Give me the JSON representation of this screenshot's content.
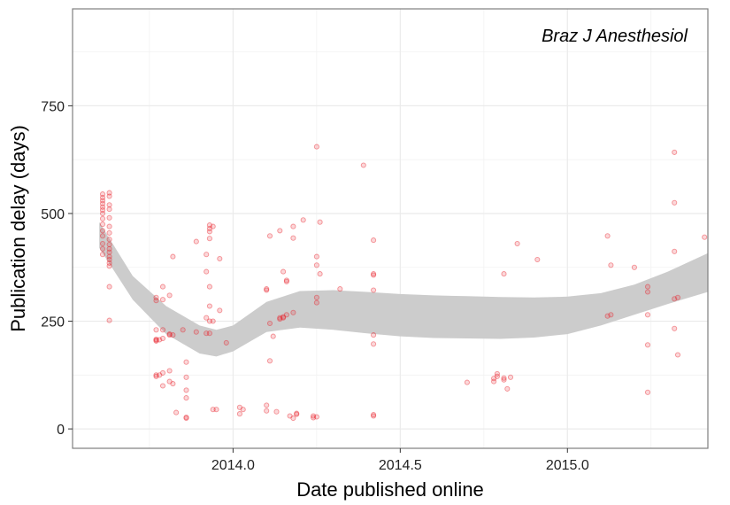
{
  "chart_data": {
    "type": "scatter",
    "title": "",
    "panel_label": "Braz J Anesthesiol",
    "xlabel": "Date published online",
    "ylabel": "Publication delay (days)",
    "x_ticks": [
      2014.0,
      2014.5,
      2015.0
    ],
    "x_tick_labels": [
      "2014.0",
      "2014.5",
      "2015.0"
    ],
    "y_ticks": [
      0,
      250,
      500,
      750
    ],
    "y_tick_labels": [
      "0",
      "250",
      "500",
      "750"
    ],
    "xlim": [
      2013.52,
      2015.42
    ],
    "ylim": [
      -45,
      975
    ],
    "grid": true,
    "point_color": "#e8212b",
    "band_color": "#cccccc",
    "smooth_band": {
      "x": [
        2013.6,
        2013.7,
        2013.8,
        2013.9,
        2013.95,
        2014.0,
        2014.1,
        2014.2,
        2014.3,
        2014.4,
        2014.5,
        2014.6,
        2014.7,
        2014.8,
        2014.9,
        2015.0,
        2015.1,
        2015.2,
        2015.3,
        2015.42
      ],
      "upper": [
        480,
        355,
        285,
        240,
        230,
        240,
        295,
        320,
        322,
        318,
        313,
        310,
        308,
        306,
        305,
        307,
        315,
        335,
        365,
        408
      ],
      "lower": [
        420,
        300,
        220,
        175,
        168,
        180,
        225,
        235,
        230,
        222,
        215,
        211,
        210,
        209,
        212,
        220,
        240,
        265,
        290,
        318
      ]
    },
    "points": [
      {
        "x": 2013.61,
        "y": 545
      },
      {
        "x": 2013.61,
        "y": 537
      },
      {
        "x": 2013.61,
        "y": 530
      },
      {
        "x": 2013.61,
        "y": 523
      },
      {
        "x": 2013.61,
        "y": 515
      },
      {
        "x": 2013.61,
        "y": 508
      },
      {
        "x": 2013.61,
        "y": 500
      },
      {
        "x": 2013.61,
        "y": 488
      },
      {
        "x": 2013.61,
        "y": 475
      },
      {
        "x": 2013.61,
        "y": 460
      },
      {
        "x": 2013.61,
        "y": 448
      },
      {
        "x": 2013.61,
        "y": 430
      },
      {
        "x": 2013.61,
        "y": 418
      },
      {
        "x": 2013.61,
        "y": 405
      },
      {
        "x": 2013.63,
        "y": 548
      },
      {
        "x": 2013.63,
        "y": 540
      },
      {
        "x": 2013.63,
        "y": 520
      },
      {
        "x": 2013.63,
        "y": 510
      },
      {
        "x": 2013.63,
        "y": 490
      },
      {
        "x": 2013.63,
        "y": 470
      },
      {
        "x": 2013.63,
        "y": 455
      },
      {
        "x": 2013.63,
        "y": 440
      },
      {
        "x": 2013.63,
        "y": 428
      },
      {
        "x": 2013.63,
        "y": 418
      },
      {
        "x": 2013.63,
        "y": 410
      },
      {
        "x": 2013.63,
        "y": 400
      },
      {
        "x": 2013.63,
        "y": 393
      },
      {
        "x": 2013.63,
        "y": 385
      },
      {
        "x": 2013.63,
        "y": 378
      },
      {
        "x": 2013.63,
        "y": 330
      },
      {
        "x": 2013.63,
        "y": 252
      },
      {
        "x": 2013.77,
        "y": 305
      },
      {
        "x": 2013.77,
        "y": 298
      },
      {
        "x": 2013.77,
        "y": 230
      },
      {
        "x": 2013.77,
        "y": 208
      },
      {
        "x": 2013.77,
        "y": 206
      },
      {
        "x": 2013.77,
        "y": 204
      },
      {
        "x": 2013.77,
        "y": 125
      },
      {
        "x": 2013.77,
        "y": 122
      },
      {
        "x": 2013.78,
        "y": 207
      },
      {
        "x": 2013.78,
        "y": 125
      },
      {
        "x": 2013.79,
        "y": 330
      },
      {
        "x": 2013.79,
        "y": 300
      },
      {
        "x": 2013.79,
        "y": 230
      },
      {
        "x": 2013.79,
        "y": 210
      },
      {
        "x": 2013.79,
        "y": 130
      },
      {
        "x": 2013.79,
        "y": 100
      },
      {
        "x": 2013.81,
        "y": 310
      },
      {
        "x": 2013.81,
        "y": 220
      },
      {
        "x": 2013.81,
        "y": 218
      },
      {
        "x": 2013.81,
        "y": 135
      },
      {
        "x": 2013.81,
        "y": 110
      },
      {
        "x": 2013.82,
        "y": 400
      },
      {
        "x": 2013.82,
        "y": 218
      },
      {
        "x": 2013.82,
        "y": 105
      },
      {
        "x": 2013.83,
        "y": 38
      },
      {
        "x": 2013.85,
        "y": 230
      },
      {
        "x": 2013.86,
        "y": 155
      },
      {
        "x": 2013.86,
        "y": 120
      },
      {
        "x": 2013.86,
        "y": 90
      },
      {
        "x": 2013.86,
        "y": 72
      },
      {
        "x": 2013.86,
        "y": 27
      },
      {
        "x": 2013.86,
        "y": 25
      },
      {
        "x": 2013.89,
        "y": 225
      },
      {
        "x": 2013.89,
        "y": 435
      },
      {
        "x": 2013.92,
        "y": 405
      },
      {
        "x": 2013.92,
        "y": 365
      },
      {
        "x": 2013.92,
        "y": 258
      },
      {
        "x": 2013.92,
        "y": 222
      },
      {
        "x": 2013.93,
        "y": 473
      },
      {
        "x": 2013.93,
        "y": 465
      },
      {
        "x": 2013.93,
        "y": 458
      },
      {
        "x": 2013.93,
        "y": 442
      },
      {
        "x": 2013.93,
        "y": 330
      },
      {
        "x": 2013.93,
        "y": 285
      },
      {
        "x": 2013.93,
        "y": 250
      },
      {
        "x": 2013.93,
        "y": 222
      },
      {
        "x": 2013.94,
        "y": 470
      },
      {
        "x": 2013.94,
        "y": 250
      },
      {
        "x": 2013.94,
        "y": 45
      },
      {
        "x": 2013.95,
        "y": 45
      },
      {
        "x": 2013.96,
        "y": 395
      },
      {
        "x": 2013.96,
        "y": 275
      },
      {
        "x": 2013.98,
        "y": 200
      },
      {
        "x": 2014.02,
        "y": 50
      },
      {
        "x": 2014.02,
        "y": 35
      },
      {
        "x": 2014.03,
        "y": 45
      },
      {
        "x": 2014.1,
        "y": 325
      },
      {
        "x": 2014.1,
        "y": 322
      },
      {
        "x": 2014.1,
        "y": 55
      },
      {
        "x": 2014.1,
        "y": 42
      },
      {
        "x": 2014.11,
        "y": 448
      },
      {
        "x": 2014.11,
        "y": 245
      },
      {
        "x": 2014.11,
        "y": 158
      },
      {
        "x": 2014.12,
        "y": 215
      },
      {
        "x": 2014.13,
        "y": 40
      },
      {
        "x": 2014.14,
        "y": 258
      },
      {
        "x": 2014.14,
        "y": 255
      },
      {
        "x": 2014.14,
        "y": 460
      },
      {
        "x": 2014.15,
        "y": 260
      },
      {
        "x": 2014.15,
        "y": 258
      },
      {
        "x": 2014.15,
        "y": 365
      },
      {
        "x": 2014.16,
        "y": 345
      },
      {
        "x": 2014.16,
        "y": 342
      },
      {
        "x": 2014.16,
        "y": 265
      },
      {
        "x": 2014.17,
        "y": 30
      },
      {
        "x": 2014.18,
        "y": 470
      },
      {
        "x": 2014.18,
        "y": 443
      },
      {
        "x": 2014.18,
        "y": 270
      },
      {
        "x": 2014.18,
        "y": 25
      },
      {
        "x": 2014.19,
        "y": 36
      },
      {
        "x": 2014.19,
        "y": 34
      },
      {
        "x": 2014.21,
        "y": 485
      },
      {
        "x": 2014.24,
        "y": 26
      },
      {
        "x": 2014.24,
        "y": 30
      },
      {
        "x": 2014.25,
        "y": 655
      },
      {
        "x": 2014.25,
        "y": 400
      },
      {
        "x": 2014.25,
        "y": 380
      },
      {
        "x": 2014.25,
        "y": 305
      },
      {
        "x": 2014.25,
        "y": 293
      },
      {
        "x": 2014.25,
        "y": 28
      },
      {
        "x": 2014.26,
        "y": 480
      },
      {
        "x": 2014.26,
        "y": 360
      },
      {
        "x": 2014.32,
        "y": 325
      },
      {
        "x": 2014.39,
        "y": 612
      },
      {
        "x": 2014.42,
        "y": 438
      },
      {
        "x": 2014.42,
        "y": 360
      },
      {
        "x": 2014.42,
        "y": 357
      },
      {
        "x": 2014.42,
        "y": 322
      },
      {
        "x": 2014.42,
        "y": 218
      },
      {
        "x": 2014.42,
        "y": 197
      },
      {
        "x": 2014.42,
        "y": 33
      },
      {
        "x": 2014.42,
        "y": 30
      },
      {
        "x": 2014.7,
        "y": 108
      },
      {
        "x": 2014.78,
        "y": 117
      },
      {
        "x": 2014.78,
        "y": 110
      },
      {
        "x": 2014.79,
        "y": 122
      },
      {
        "x": 2014.79,
        "y": 128
      },
      {
        "x": 2014.81,
        "y": 360
      },
      {
        "x": 2014.81,
        "y": 114
      },
      {
        "x": 2014.81,
        "y": 118
      },
      {
        "x": 2014.82,
        "y": 93
      },
      {
        "x": 2014.83,
        "y": 120
      },
      {
        "x": 2014.85,
        "y": 430
      },
      {
        "x": 2014.91,
        "y": 393
      },
      {
        "x": 2015.12,
        "y": 448
      },
      {
        "x": 2015.12,
        "y": 262
      },
      {
        "x": 2015.13,
        "y": 380
      },
      {
        "x": 2015.13,
        "y": 265
      },
      {
        "x": 2015.2,
        "y": 375
      },
      {
        "x": 2015.24,
        "y": 330
      },
      {
        "x": 2015.24,
        "y": 318
      },
      {
        "x": 2015.24,
        "y": 265
      },
      {
        "x": 2015.24,
        "y": 195
      },
      {
        "x": 2015.24,
        "y": 85
      },
      {
        "x": 2015.32,
        "y": 642
      },
      {
        "x": 2015.32,
        "y": 525
      },
      {
        "x": 2015.32,
        "y": 412
      },
      {
        "x": 2015.32,
        "y": 302
      },
      {
        "x": 2015.32,
        "y": 233
      },
      {
        "x": 2015.33,
        "y": 305
      },
      {
        "x": 2015.33,
        "y": 172
      },
      {
        "x": 2015.41,
        "y": 445
      }
    ]
  }
}
